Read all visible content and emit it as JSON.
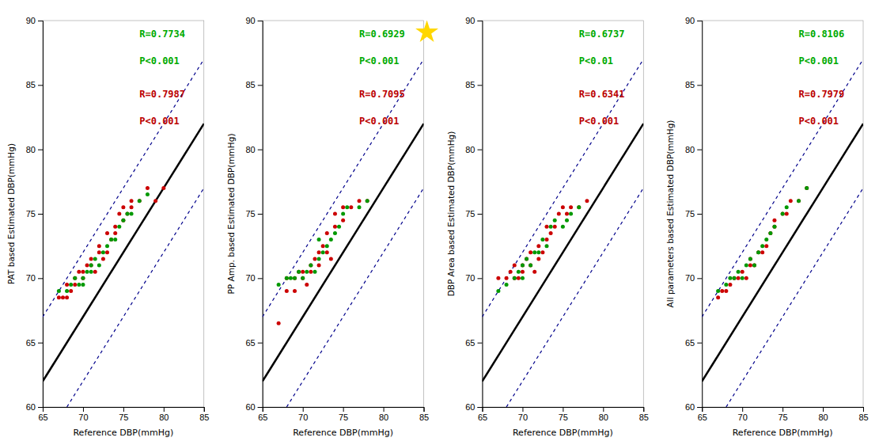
{
  "chart_data": [
    {
      "type": "scatter",
      "xlabel": "Reference DBP(mmHg)",
      "ylabel": "PAT based Estimated DBP(mmHg)",
      "xlim": [
        65,
        85
      ],
      "ylim": [
        60,
        90
      ],
      "xticks": [
        65,
        70,
        75,
        80,
        85
      ],
      "yticks": [
        60,
        65,
        70,
        75,
        80,
        85,
        90
      ],
      "grid": false,
      "series": [
        {
          "type": "line",
          "line_style": "dashed",
          "color": "#00008B",
          "x": [
            65,
            85
          ],
          "values": [
            67,
            87
          ]
        },
        {
          "type": "line",
          "line_style": "dashed",
          "color": "#00008B",
          "x": [
            68,
            85
          ],
          "values": [
            60,
            77
          ]
        },
        {
          "type": "line",
          "line_style": "solid",
          "color": "black",
          "x": [
            65,
            85
          ],
          "values": [
            62,
            82
          ]
        },
        {
          "type": "scatter",
          "marker": "circle",
          "color": "#cc0000",
          "x": [
            67,
            67.5,
            68,
            68.5,
            68,
            69,
            69,
            69.5,
            70,
            70,
            70.5,
            71,
            71,
            71.5,
            72,
            72,
            72.5,
            73,
            73,
            73.5,
            74,
            74,
            74.5,
            75,
            75,
            75.5,
            76,
            76,
            77,
            78,
            79,
            80
          ],
          "values": [
            68.5,
            68.5,
            68.5,
            69,
            69.5,
            69.5,
            70,
            70.5,
            70,
            70.5,
            71,
            71,
            71.5,
            70.5,
            72,
            72.5,
            71.5,
            72,
            73.5,
            73,
            74,
            73.5,
            75,
            74.5,
            75.5,
            75,
            75.5,
            76,
            76,
            77,
            76,
            77
          ]
        },
        {
          "type": "scatter",
          "marker": "circle",
          "color": "#009900",
          "x": [
            67,
            68,
            68.5,
            69,
            69.5,
            70,
            70,
            70.5,
            71,
            71,
            71.5,
            72,
            72.5,
            73,
            73.5,
            74,
            74.5,
            75,
            75.5,
            76,
            77,
            78
          ],
          "values": [
            69,
            69,
            69.5,
            70,
            69.5,
            70,
            69.5,
            70.5,
            71,
            70.5,
            71.5,
            71,
            72,
            72.5,
            73,
            73,
            74,
            74.5,
            75,
            75,
            76,
            76.5
          ]
        }
      ],
      "annotations": [
        {
          "text": "R=0.7734",
          "color": "#00aa00"
        },
        {
          "text": "P<0.001",
          "color": "#00aa00"
        },
        {
          "text": "R=0.7987",
          "color": "#bb0000"
        },
        {
          "text": "P<0.001",
          "color": "#bb0000"
        }
      ]
    },
    {
      "type": "scatter",
      "xlabel": "Reference DBP(mmHg)",
      "ylabel": "PP Amp. based Estimated DBP(mmHg)",
      "xlim": [
        65,
        85
      ],
      "ylim": [
        60,
        90
      ],
      "xticks": [
        65,
        70,
        75,
        80,
        85
      ],
      "yticks": [
        60,
        65,
        70,
        75,
        80,
        85,
        90
      ],
      "grid": false,
      "series": [
        {
          "type": "line",
          "line_style": "dashed",
          "color": "#00008B",
          "x": [
            65,
            85
          ],
          "values": [
            67,
            87
          ]
        },
        {
          "type": "line",
          "line_style": "dashed",
          "color": "#00008B",
          "x": [
            68,
            85
          ],
          "values": [
            60,
            77
          ]
        },
        {
          "type": "line",
          "line_style": "solid",
          "color": "black",
          "x": [
            65,
            85
          ],
          "values": [
            62,
            82
          ]
        },
        {
          "type": "scatter",
          "marker": "circle",
          "color": "#cc0000",
          "x": [
            67,
            68,
            68,
            69,
            69,
            69.5,
            70,
            70,
            70.5,
            71,
            71,
            71.5,
            72,
            72,
            72.5,
            73,
            73,
            73.5,
            74,
            74,
            75,
            75,
            76,
            77,
            78
          ],
          "values": [
            66.5,
            69,
            70,
            69,
            70,
            70.5,
            70,
            70.5,
            69.5,
            70.5,
            71,
            71.5,
            71,
            72,
            72.5,
            72,
            73.5,
            71.5,
            74,
            75,
            74.5,
            75.5,
            75.5,
            76,
            76
          ]
        },
        {
          "type": "scatter",
          "marker": "circle",
          "color": "#009900",
          "x": [
            67,
            68,
            68.5,
            69,
            69.5,
            70,
            70.5,
            71,
            71.5,
            72,
            72,
            72.5,
            73,
            73.5,
            74,
            74.5,
            75,
            75.5,
            77,
            78
          ],
          "values": [
            69.5,
            70,
            70,
            70,
            70.5,
            70,
            70.5,
            71,
            70.5,
            71.5,
            73,
            72,
            72.5,
            73,
            73.5,
            74,
            75,
            75.5,
            75.5,
            76
          ]
        }
      ],
      "annotations": [
        {
          "text": "R=0.6929",
          "color": "#00aa00"
        },
        {
          "text": "P<0.001",
          "color": "#00aa00"
        },
        {
          "text": "R=0.7095",
          "color": "#bb0000"
        },
        {
          "text": "P<0.001",
          "color": "#bb0000"
        },
        {
          "marker": "star",
          "color": "#FFD700"
        }
      ]
    },
    {
      "type": "scatter",
      "xlabel": "Reference DBP(mmHg)",
      "ylabel": "DBP Area based Estimated DBP(mmHg)",
      "xlim": [
        65,
        85
      ],
      "ylim": [
        60,
        90
      ],
      "xticks": [
        65,
        70,
        75,
        80,
        85
      ],
      "yticks": [
        60,
        65,
        70,
        75,
        80,
        85,
        90
      ],
      "grid": false,
      "series": [
        {
          "type": "line",
          "line_style": "dashed",
          "color": "#00008B",
          "x": [
            65,
            85
          ],
          "values": [
            67,
            87
          ]
        },
        {
          "type": "line",
          "line_style": "dashed",
          "color": "#00008B",
          "x": [
            68,
            85
          ],
          "values": [
            60,
            77
          ]
        },
        {
          "type": "line",
          "line_style": "solid",
          "color": "black",
          "x": [
            65,
            85
          ],
          "values": [
            62,
            82
          ]
        },
        {
          "type": "scatter",
          "marker": "circle",
          "color": "#cc0000",
          "x": [
            67,
            68,
            68.5,
            69,
            69,
            69.5,
            70,
            70,
            70.5,
            71,
            71,
            71.5,
            72,
            72,
            72.5,
            73,
            73,
            73.5,
            74,
            74.5,
            75,
            75.5,
            76,
            77,
            78
          ],
          "values": [
            70,
            70,
            70.5,
            70,
            71,
            70,
            70.5,
            71,
            71.5,
            71,
            72,
            70.5,
            71.5,
            72.5,
            72,
            73,
            74,
            73.5,
            74,
            75,
            75.5,
            75,
            75.5,
            75.5,
            76
          ]
        },
        {
          "type": "scatter",
          "marker": "circle",
          "color": "#009900",
          "x": [
            67,
            68,
            69,
            69.5,
            70,
            70,
            70.5,
            71,
            71.5,
            72,
            72.5,
            73,
            73.5,
            74,
            75,
            75.5,
            76,
            77
          ],
          "values": [
            69,
            69.5,
            70,
            70.5,
            70,
            71,
            71.5,
            71,
            72,
            72,
            73,
            72.5,
            74,
            74.5,
            74,
            74.5,
            75,
            75.5
          ]
        }
      ],
      "annotations": [
        {
          "text": "R=0.6737",
          "color": "#00aa00"
        },
        {
          "text": "P<0.01",
          "color": "#00aa00"
        },
        {
          "text": "R=0.6341",
          "color": "#bb0000"
        },
        {
          "text": "P<0.001",
          "color": "#bb0000"
        }
      ]
    },
    {
      "type": "scatter",
      "xlabel": "Reference DBP(mmHg)",
      "ylabel": "All parameters based Estimated DBP(mmHg)",
      "xlim": [
        65,
        85
      ],
      "ylim": [
        60,
        90
      ],
      "xticks": [
        65,
        70,
        75,
        80,
        85
      ],
      "yticks": [
        60,
        65,
        70,
        75,
        80,
        85,
        90
      ],
      "grid": false,
      "series": [
        {
          "type": "line",
          "line_style": "dashed",
          "color": "#00008B",
          "x": [
            65,
            85
          ],
          "values": [
            67,
            87
          ]
        },
        {
          "type": "line",
          "line_style": "dashed",
          "color": "#00008B",
          "x": [
            68,
            85
          ],
          "values": [
            60,
            77
          ]
        },
        {
          "type": "line",
          "line_style": "solid",
          "color": "black",
          "x": [
            65,
            85
          ],
          "values": [
            62,
            82
          ]
        },
        {
          "type": "scatter",
          "marker": "circle",
          "color": "#cc0000",
          "x": [
            67,
            67.5,
            68,
            68.5,
            69,
            69.5,
            70,
            70.5,
            71,
            71,
            71.5,
            72,
            72.5,
            73,
            73.5,
            74,
            74,
            75,
            75.5,
            76,
            77,
            78
          ],
          "values": [
            68.5,
            69,
            69,
            69.5,
            70,
            70,
            70.5,
            70,
            71,
            71.5,
            71,
            72,
            72,
            72.5,
            73.5,
            74,
            74.5,
            75,
            75,
            76,
            76,
            77
          ]
        },
        {
          "type": "scatter",
          "marker": "circle",
          "color": "#009900",
          "x": [
            67,
            68,
            68.5,
            69,
            69.5,
            70,
            70.5,
            71,
            71.5,
            72,
            72.5,
            73,
            73.5,
            74,
            75,
            75.5,
            77,
            78
          ],
          "values": [
            69,
            69.5,
            70,
            70,
            70.5,
            70,
            71,
            71.5,
            71,
            72,
            72.5,
            73,
            73.5,
            74,
            75,
            75.5,
            76,
            77
          ]
        }
      ],
      "annotations": [
        {
          "text": "R=0.8106",
          "color": "#00aa00"
        },
        {
          "text": "P<0.001",
          "color": "#00aa00"
        },
        {
          "text": "R=0.7979",
          "color": "#bb0000"
        },
        {
          "text": "P<0.001",
          "color": "#bb0000"
        }
      ]
    }
  ]
}
